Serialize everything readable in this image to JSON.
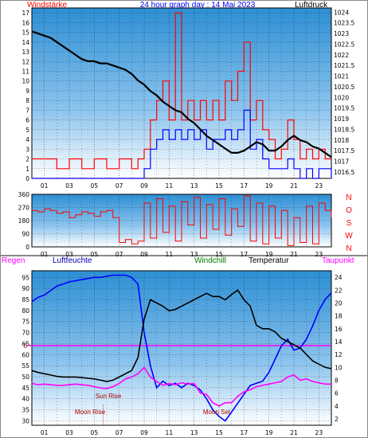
{
  "colors": {
    "red": "#ff0000",
    "blue": "#0000ff",
    "black": "#000000",
    "green": "#008000",
    "magenta": "#ff00ff",
    "darkblue": "#0000aa",
    "maroon": "#aa0000",
    "bg_top": "#2d8fd4",
    "bg_bottom": "#ffffff"
  },
  "chart_data": [
    {
      "type": "line",
      "id": "wind-pressure",
      "title": "24 hour graph day : 14 Mai 2023",
      "left_label": "Windstärke",
      "right_label": "Luftdruck",
      "x_ticks": [
        "01",
        "03",
        "05",
        "07",
        "09",
        "11",
        "13",
        "15",
        "17",
        "19",
        "21",
        "23"
      ],
      "x_range": [
        0,
        24
      ],
      "y_left_ticks": [
        0,
        1,
        2,
        3,
        4,
        5,
        6,
        7,
        8,
        9,
        10,
        11,
        12,
        13,
        14,
        15,
        16,
        17
      ],
      "y_left_range": [
        0,
        17.5
      ],
      "y_right_ticks": [
        "1016.5",
        "1017",
        "1017.5",
        "1018",
        "1018.5",
        "1019",
        "1019.5",
        "1020",
        "1020.5",
        "1021",
        "1021.5",
        "1022",
        "1022.5",
        "1023",
        "1023.5",
        "1024"
      ],
      "y_right_range": [
        1016.2,
        1024.2
      ],
      "grid": true,
      "series": [
        {
          "name": "Luftdruck",
          "color": "black",
          "x": [
            0,
            0.5,
            1,
            1.5,
            2,
            2.5,
            3,
            3.5,
            4,
            4.5,
            5,
            5.5,
            6,
            6.5,
            7,
            7.5,
            8,
            8.5,
            9,
            9.5,
            10,
            10.5,
            11,
            11.5,
            12,
            12.5,
            13,
            13.5,
            14,
            14.5,
            15,
            15.5,
            16,
            16.5,
            17,
            17.5,
            18,
            18.5,
            19,
            19.5,
            20,
            20.5,
            21,
            21.5,
            22,
            22.5,
            23,
            23.5,
            24
          ],
          "y": [
            1023.1,
            1023.0,
            1022.9,
            1022.8,
            1022.6,
            1022.4,
            1022.2,
            1022.0,
            1021.8,
            1021.7,
            1021.7,
            1021.6,
            1021.6,
            1021.5,
            1021.4,
            1021.3,
            1021.1,
            1020.8,
            1020.6,
            1020.3,
            1020.1,
            1019.8,
            1019.6,
            1019.4,
            1019.3,
            1019.0,
            1018.8,
            1018.5,
            1018.2,
            1018.0,
            1017.8,
            1017.6,
            1017.4,
            1017.4,
            1017.5,
            1017.7,
            1017.9,
            1017.8,
            1017.5,
            1017.5,
            1017.7,
            1018.0,
            1018.2,
            1018.0,
            1017.9,
            1017.7,
            1017.6,
            1017.4,
            1017.2
          ]
        },
        {
          "name": "Windböen",
          "color": "red",
          "x": [
            0,
            1,
            2,
            3,
            4,
            5,
            6,
            7,
            8,
            8.5,
            9,
            9.5,
            10,
            10.5,
            11,
            11.5,
            12,
            12.5,
            13,
            13.5,
            14,
            14.5,
            15,
            15.5,
            16,
            16.5,
            17,
            17.5,
            18,
            18.5,
            19,
            19.5,
            20,
            20.5,
            21,
            21.5,
            22,
            22.5,
            23,
            23.5,
            24
          ],
          "y": [
            2,
            2,
            1,
            2,
            1,
            2,
            1,
            2,
            1,
            2,
            3,
            6,
            8,
            10,
            6,
            17,
            6,
            8,
            6,
            8,
            6,
            8,
            6,
            10,
            8,
            11,
            14,
            6,
            8,
            5,
            4,
            2,
            3,
            6,
            4,
            2,
            3,
            2,
            3,
            2,
            2
          ]
        },
        {
          "name": "Windstärke",
          "color": "blue",
          "x": [
            0,
            1,
            2,
            3,
            4,
            5,
            6,
            7,
            8,
            8.5,
            9,
            9.5,
            10,
            10.5,
            11,
            11.5,
            12,
            12.5,
            13,
            13.5,
            14,
            14.5,
            15,
            15.5,
            16,
            16.5,
            17,
            17.5,
            18,
            18.5,
            19,
            19.5,
            20,
            20.5,
            21,
            21.5,
            22,
            22.5,
            23,
            23.5,
            24
          ],
          "y": [
            0,
            0,
            0,
            0,
            0,
            0,
            0,
            0,
            0,
            0,
            1,
            3,
            4,
            5,
            4,
            5,
            4,
            5,
            4,
            5,
            3,
            4,
            4,
            5,
            4,
            5,
            7,
            3,
            4,
            2,
            1,
            1,
            1,
            2,
            1,
            0,
            1,
            0,
            1,
            1,
            0
          ]
        }
      ]
    },
    {
      "type": "line",
      "id": "wind-direction",
      "x_ticks": [
        "01",
        "03",
        "05",
        "07",
        "09",
        "11",
        "13",
        "15",
        "17",
        "19",
        "21",
        "23"
      ],
      "x_range": [
        0,
        24
      ],
      "y_left_ticks": [
        0,
        90,
        180,
        270,
        360
      ],
      "y_left_range": [
        0,
        360
      ],
      "y_right_ticks": [
        "N",
        "W",
        "S",
        "O",
        "N"
      ],
      "grid": true,
      "series": [
        {
          "name": "Windrichtung",
          "color": "red",
          "x": [
            0,
            0.5,
            1,
            1.5,
            2,
            2.5,
            3,
            3.5,
            4,
            4.5,
            5,
            5.5,
            6,
            6.5,
            7,
            7.5,
            8,
            8.5,
            9,
            9.5,
            10,
            10.5,
            11,
            11.5,
            12,
            12.5,
            13,
            13.5,
            14,
            14.5,
            15,
            15.5,
            16,
            16.5,
            17,
            17.5,
            18,
            18.5,
            19,
            19.5,
            20,
            20.5,
            21,
            21.5,
            22,
            22.5,
            23,
            23.5,
            24
          ],
          "y": [
            250,
            240,
            260,
            250,
            230,
            240,
            200,
            220,
            240,
            230,
            210,
            240,
            250,
            200,
            30,
            50,
            20,
            40,
            300,
            60,
            330,
            100,
            280,
            40,
            310,
            150,
            340,
            60,
            290,
            120,
            330,
            80,
            260,
            140,
            350,
            40,
            300,
            20,
            280,
            60,
            250,
            10,
            200,
            30,
            280,
            20,
            300,
            250,
            200
          ]
        }
      ]
    },
    {
      "type": "line",
      "id": "temp-humidity",
      "legend_labels": [
        "Regen",
        "Luftfeuchte",
        "Windchill",
        "Temperatur",
        "Taupunkt"
      ],
      "x_ticks": [
        "01",
        "03",
        "05",
        "07",
        "09",
        "11",
        "13",
        "15",
        "17",
        "19",
        "21",
        "23"
      ],
      "x_range": [
        0,
        24
      ],
      "y_left_ticks": [
        30,
        35,
        40,
        45,
        50,
        55,
        60,
        65,
        70,
        75,
        80,
        85,
        90,
        95
      ],
      "y_left_range": [
        28,
        98
      ],
      "y_right_ticks": [
        2,
        4,
        6,
        8,
        10,
        12,
        14,
        16,
        18,
        20,
        22,
        24
      ],
      "y_right_range": [
        1,
        25
      ],
      "rain_axis_label": "0",
      "rain_value": 0,
      "grid": true,
      "annotations": [
        {
          "text": "Sun Rise",
          "x": 5.8
        },
        {
          "text": "Moon Rise",
          "x": 4.3
        },
        {
          "text": "Moon Set",
          "x": 14.8
        }
      ],
      "series": [
        {
          "name": "Luftfeuchte",
          "color": "blue",
          "x": [
            0,
            0.5,
            1,
            1.5,
            2,
            2.5,
            3,
            3.5,
            4,
            4.5,
            5,
            5.5,
            6,
            6.5,
            7,
            7.5,
            8,
            8.5,
            9,
            9.5,
            10,
            10.5,
            11,
            11.5,
            12,
            12.5,
            13,
            13.5,
            14,
            14.5,
            15,
            15.5,
            16,
            16.5,
            17,
            17.5,
            18,
            18.5,
            19,
            19.5,
            20,
            20.5,
            21,
            21.5,
            22,
            22.5,
            23,
            23.5,
            24
          ],
          "y": [
            84,
            86,
            87,
            89,
            91,
            92,
            93,
            93.5,
            94,
            94.5,
            95,
            95,
            95.5,
            96,
            96,
            96,
            95,
            92,
            70,
            55,
            45,
            48,
            46,
            47,
            45,
            47,
            46,
            44,
            40,
            35,
            32,
            30,
            34,
            38,
            42,
            46,
            47,
            48,
            52,
            58,
            64,
            67,
            62,
            63,
            67,
            73,
            80,
            85,
            88
          ]
        },
        {
          "name": "Temperatur",
          "color": "black",
          "x": [
            0,
            0.5,
            1,
            1.5,
            2,
            2.5,
            3,
            3.5,
            4,
            4.5,
            5,
            5.5,
            6,
            6.5,
            7,
            7.5,
            8,
            8.5,
            9,
            9.5,
            10,
            10.5,
            11,
            11.5,
            12,
            12.5,
            13,
            13.5,
            14,
            14.5,
            15,
            15.5,
            16,
            16.5,
            17,
            17.5,
            18,
            18.5,
            19,
            19.5,
            20,
            20.5,
            21,
            21.5,
            22,
            22.5,
            23,
            23.5,
            24
          ],
          "y": [
            9.5,
            9.2,
            9.0,
            8.8,
            8.6,
            8.5,
            8.5,
            8.5,
            8.4,
            8.3,
            8.2,
            8.0,
            7.8,
            8.0,
            8.5,
            9.0,
            9.5,
            11.5,
            17.5,
            20.5,
            20.0,
            19.5,
            18.8,
            19.0,
            19.5,
            20.0,
            20.5,
            21.0,
            21.5,
            21.0,
            21.0,
            20.5,
            21.3,
            22.0,
            20.5,
            19.5,
            16.5,
            16.0,
            16.0,
            15.5,
            14.5,
            14.0,
            13.5,
            13.0,
            12.0,
            11.0,
            10.5,
            10.0,
            9.8
          ]
        },
        {
          "name": "Taupunkt",
          "color": "magenta",
          "x": [
            0,
            0.5,
            1,
            1.5,
            2,
            2.5,
            3,
            3.5,
            4,
            4.5,
            5,
            5.5,
            6,
            6.5,
            7,
            7.5,
            8,
            8.5,
            9,
            9.5,
            10,
            10.5,
            11,
            11.5,
            12,
            12.5,
            13,
            13.5,
            14,
            14.5,
            15,
            15.5,
            16,
            16.5,
            17,
            17.5,
            18,
            18.5,
            19,
            19.5,
            20,
            20.5,
            21,
            21.5,
            22,
            22.5,
            23,
            23.5,
            24
          ],
          "y": [
            7.5,
            7.3,
            7.4,
            7.3,
            7.2,
            7.2,
            7.3,
            7.4,
            7.3,
            7.2,
            7.0,
            6.8,
            6.7,
            7.0,
            7.5,
            8.2,
            8.5,
            9.0,
            10.0,
            8.5,
            7.8,
            7.2,
            7.5,
            7.3,
            7.6,
            7.4,
            7.5,
            6.0,
            5.8,
            4.5,
            4.0,
            4.5,
            4.5,
            5.5,
            6.2,
            6.5,
            7.0,
            7.2,
            7.4,
            7.6,
            7.8,
            8.5,
            8.8,
            8.0,
            8.2,
            7.8,
            7.6,
            7.4,
            7.4
          ]
        },
        {
          "name": "Windchill",
          "color": "green",
          "x": [],
          "y": []
        }
      ]
    }
  ]
}
